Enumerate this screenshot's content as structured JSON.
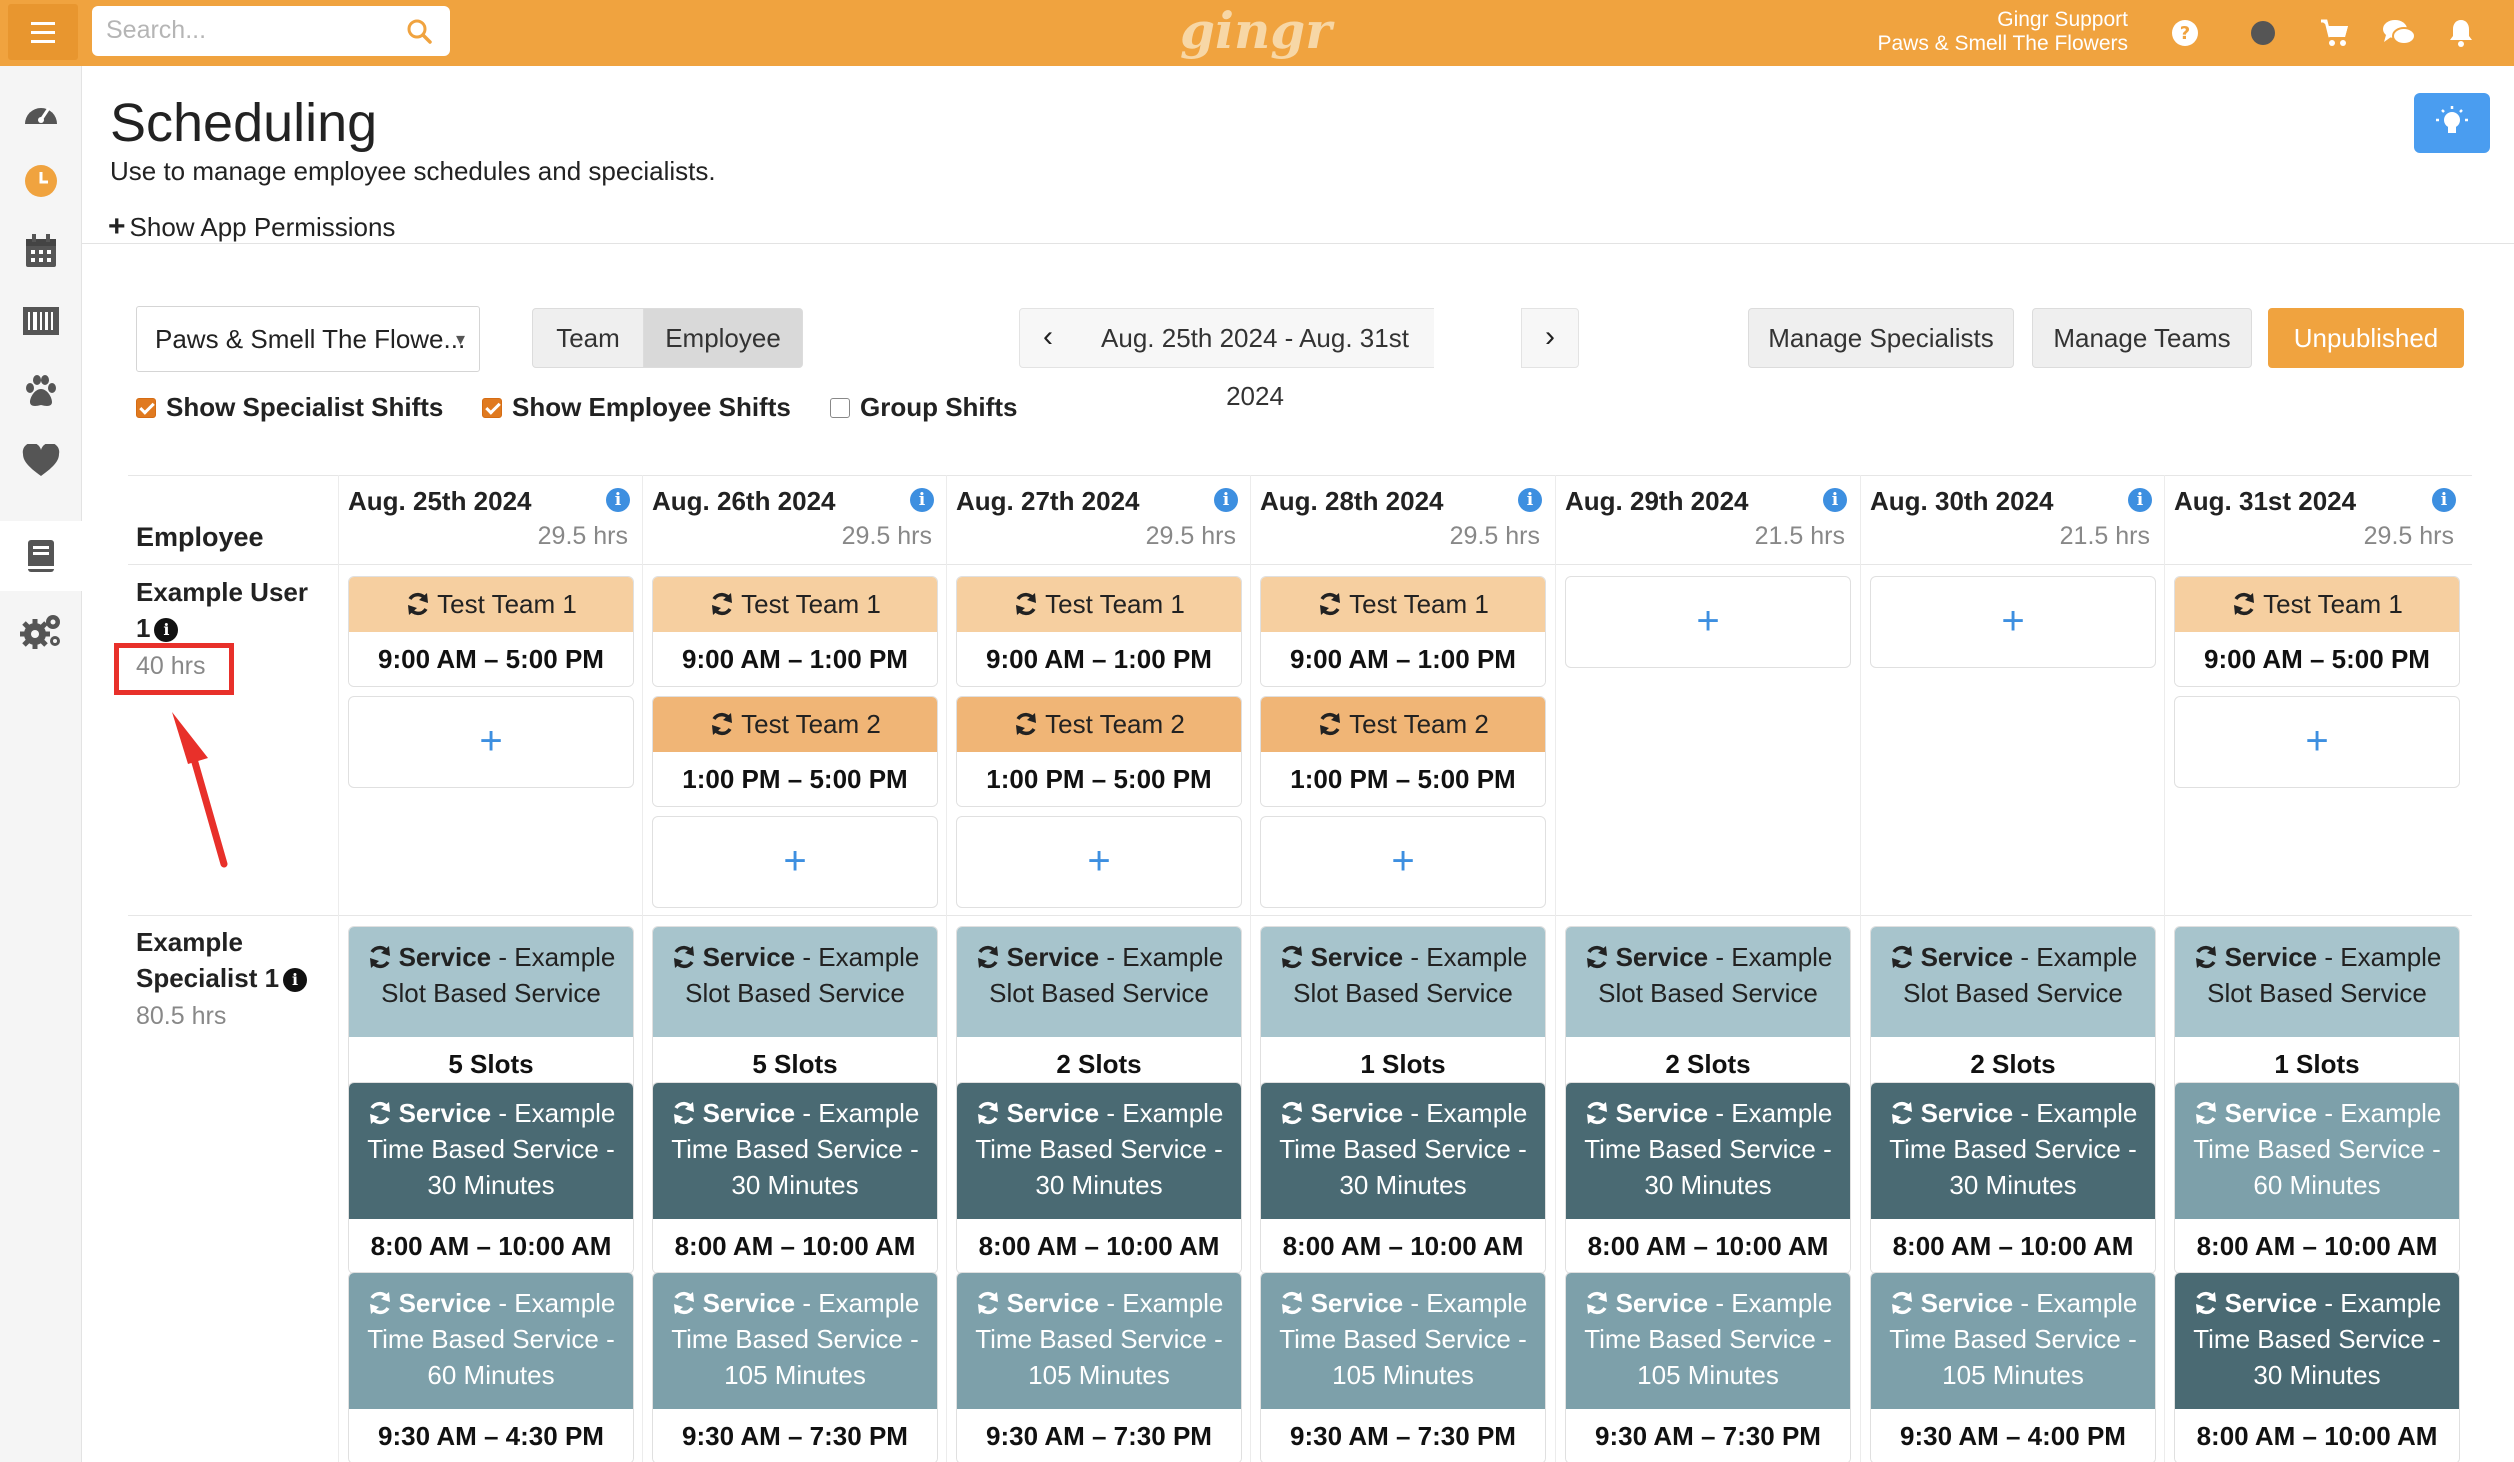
{
  "topbar": {
    "search_placeholder": "Search...",
    "logo_text": "gingr",
    "user_name": "Gingr Support",
    "user_location": "Paws & Smell The Flowers",
    "icons": [
      "help-icon",
      "status-dot-icon",
      "cart-icon",
      "chat-icon",
      "bell-icon"
    ]
  },
  "sidebar": {
    "items": [
      "dashboard-icon",
      "clock-icon",
      "calendar-icon",
      "barcode-icon",
      "paw-icon",
      "heart-icon",
      "book-icon",
      "gears-icon"
    ],
    "active": "book-icon"
  },
  "page": {
    "title": "Scheduling",
    "subtitle": "Use to manage employee schedules and specialists.",
    "permissions_link": "Show App Permissions"
  },
  "controls": {
    "location": "Paws & Smell The Flowe...",
    "view_team": "Team",
    "view_employee": "Employee",
    "active_view": "Employee",
    "date_range": "Aug. 25th 2024 - Aug. 31st 2024",
    "manage_specialists": "Manage Specialists",
    "manage_teams": "Manage Teams",
    "status_button": "Unpublished",
    "show_specialist_shifts": "Show Specialist Shifts",
    "show_employee_shifts": "Show Employee Shifts",
    "group_shifts": "Group Shifts"
  },
  "colors": {
    "accent": "#f0a33f",
    "team1": "#f6cfa0",
    "team2": "#f0b576",
    "slot_service": "#a7c4cc",
    "time_service_dark": "#4a6a73",
    "time_service_light": "#7da0aa",
    "info_blue": "#3d8fe0",
    "highlight_red": "#e8302a"
  },
  "grid": {
    "employee_header": "Employee",
    "days": [
      {
        "date": "Aug. 25th 2024",
        "hours": "29.5 hrs"
      },
      {
        "date": "Aug. 26th 2024",
        "hours": "29.5 hrs"
      },
      {
        "date": "Aug. 27th 2024",
        "hours": "29.5 hrs"
      },
      {
        "date": "Aug. 28th 2024",
        "hours": "29.5 hrs"
      },
      {
        "date": "Aug. 29th 2024",
        "hours": "21.5 hrs"
      },
      {
        "date": "Aug. 30th 2024",
        "hours": "21.5 hrs"
      },
      {
        "date": "Aug. 31st 2024",
        "hours": "29.5 hrs"
      }
    ],
    "rows": [
      {
        "name_line1": "Example User",
        "name_line2": "1",
        "hours": "40 hrs",
        "days": [
          [
            {
              "team": "Test Team 1",
              "time": "9:00 AM – 5:00 PM",
              "style": "team1"
            }
          ],
          [
            {
              "team": "Test Team 1",
              "time": "9:00 AM – 1:00 PM",
              "style": "team1"
            },
            {
              "team": "Test Team 2",
              "time": "1:00 PM – 5:00 PM",
              "style": "team2"
            }
          ],
          [
            {
              "team": "Test Team 1",
              "time": "9:00 AM – 1:00 PM",
              "style": "team1"
            },
            {
              "team": "Test Team 2",
              "time": "1:00 PM – 5:00 PM",
              "style": "team2"
            }
          ],
          [
            {
              "team": "Test Team 1",
              "time": "9:00 AM – 1:00 PM",
              "style": "team1"
            },
            {
              "team": "Test Team 2",
              "time": "1:00 PM – 5:00 PM",
              "style": "team2"
            }
          ],
          [],
          [],
          [
            {
              "team": "Test Team 1",
              "time": "9:00 AM – 5:00 PM",
              "style": "team1"
            }
          ]
        ]
      },
      {
        "name_line1": "Example",
        "name_line2": "Specialist 1",
        "hours": "80.5 hrs",
        "days": [
          [
            {
              "bold": "Service",
              "rest": " - Example Slot Based Service",
              "bottom": "5 Slots",
              "style": "slot"
            },
            {
              "bold": "Service",
              "rest": " - Example Time Based Service - 30 Minutes",
              "bottom": "8:00 AM – 10:00 AM",
              "style": "dark"
            },
            {
              "bold": "Service",
              "rest": " - Example Time Based Service - 60 Minutes",
              "bottom": "9:30 AM – 4:30 PM",
              "style": "light"
            }
          ],
          [
            {
              "bold": "Service",
              "rest": " - Example Slot Based Service",
              "bottom": "5 Slots",
              "style": "slot"
            },
            {
              "bold": "Service",
              "rest": " - Example Time Based Service - 30 Minutes",
              "bottom": "8:00 AM – 10:00 AM",
              "style": "dark"
            },
            {
              "bold": "Service",
              "rest": " - Example Time Based Service - 105 Minutes",
              "bottom": "9:30 AM – 7:30 PM",
              "style": "light"
            }
          ],
          [
            {
              "bold": "Service",
              "rest": " - Example Slot Based Service",
              "bottom": "2 Slots",
              "style": "slot"
            },
            {
              "bold": "Service",
              "rest": " - Example Time Based Service - 30 Minutes",
              "bottom": "8:00 AM – 10:00 AM",
              "style": "dark"
            },
            {
              "bold": "Service",
              "rest": " - Example Time Based Service - 105 Minutes",
              "bottom": "9:30 AM – 7:30 PM",
              "style": "light"
            }
          ],
          [
            {
              "bold": "Service",
              "rest": " - Example Slot Based Service",
              "bottom": "1 Slots",
              "style": "slot"
            },
            {
              "bold": "Service",
              "rest": " - Example Time Based Service - 30 Minutes",
              "bottom": "8:00 AM – 10:00 AM",
              "style": "dark"
            },
            {
              "bold": "Service",
              "rest": " - Example Time Based Service - 105 Minutes",
              "bottom": "9:30 AM – 7:30 PM",
              "style": "light"
            }
          ],
          [
            {
              "bold": "Service",
              "rest": " - Example Slot Based Service",
              "bottom": "2 Slots",
              "style": "slot"
            },
            {
              "bold": "Service",
              "rest": " - Example Time Based Service - 30 Minutes",
              "bottom": "8:00 AM – 10:00 AM",
              "style": "dark"
            },
            {
              "bold": "Service",
              "rest": " - Example Time Based Service - 105 Minutes",
              "bottom": "9:30 AM – 7:30 PM",
              "style": "light"
            }
          ],
          [
            {
              "bold": "Service",
              "rest": " - Example Slot Based Service",
              "bottom": "2 Slots",
              "style": "slot"
            },
            {
              "bold": "Service",
              "rest": " - Example Time Based Service - 30 Minutes",
              "bottom": "8:00 AM – 10:00 AM",
              "style": "dark"
            },
            {
              "bold": "Service",
              "rest": " - Example Time Based Service - 105 Minutes",
              "bottom": "9:30 AM – 4:00 PM",
              "style": "light"
            }
          ],
          [
            {
              "bold": "Service",
              "rest": " - Example Slot Based Service",
              "bottom": "1 Slots",
              "style": "slot"
            },
            {
              "bold": "Service",
              "rest": " - Example Time Based Service - 60 Minutes",
              "bottom": "8:00 AM – 10:00 AM",
              "style": "light"
            },
            {
              "bold": "Service",
              "rest": " - Example Time Based Service - 30 Minutes",
              "bottom": "8:00 AM – 10:00 AM",
              "style": "dark"
            }
          ]
        ]
      }
    ]
  }
}
